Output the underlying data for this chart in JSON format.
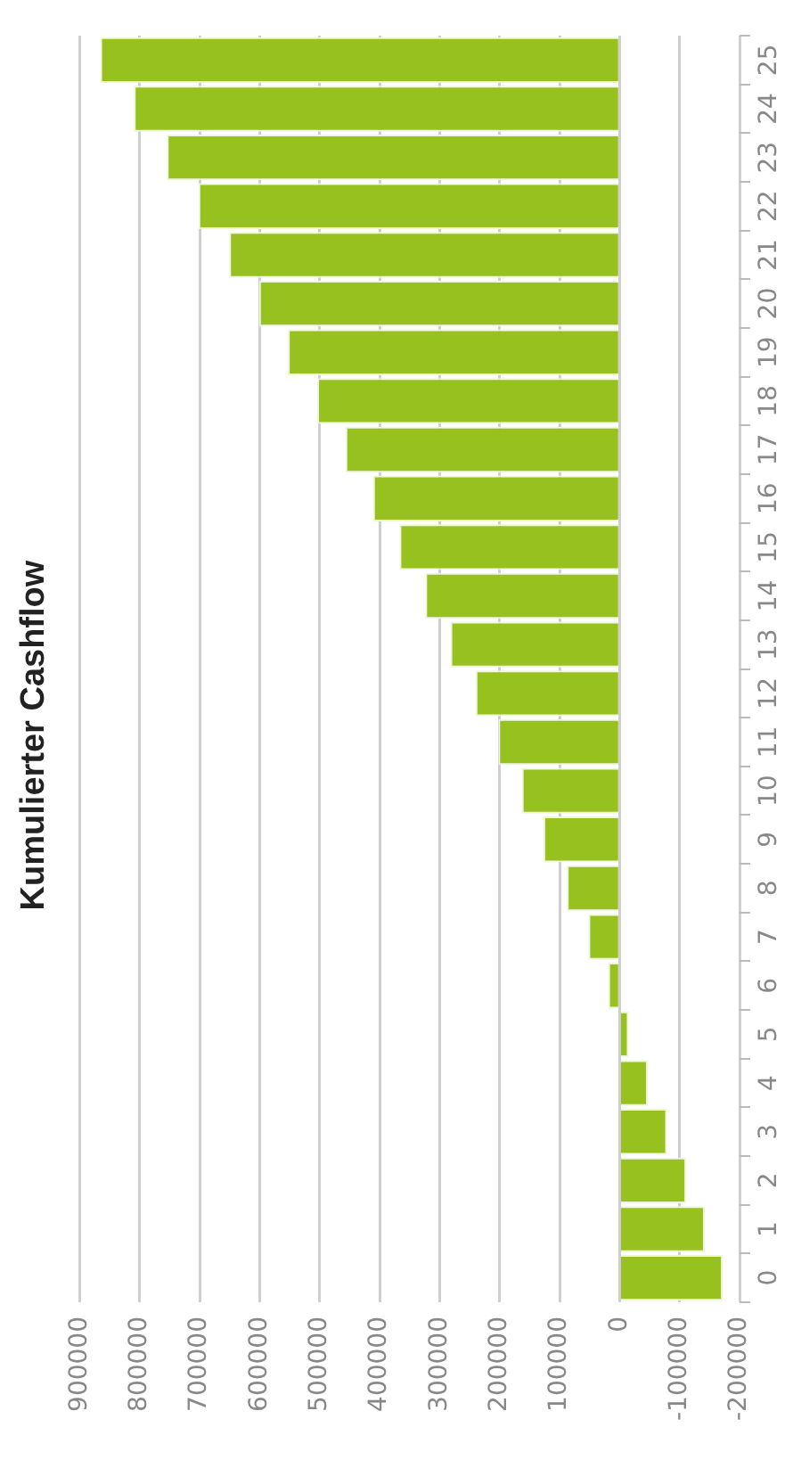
{
  "chart_data": {
    "type": "bar",
    "title": "Kumulierter Cashflow",
    "orientation": "horizontal",
    "categories": [
      "25",
      "24",
      "23",
      "22",
      "21",
      "20",
      "19",
      "18",
      "17",
      "16",
      "15",
      "14",
      "13",
      "12",
      "11",
      "10",
      "9",
      "8",
      "7",
      "6",
      "5",
      "4",
      "3",
      "2",
      "1",
      "0"
    ],
    "values": [
      866000,
      810000,
      755000,
      702000,
      651000,
      601000,
      553000,
      504000,
      457000,
      411000,
      367000,
      324000,
      282000,
      240000,
      202000,
      163000,
      127000,
      88000,
      52000,
      19000,
      -15000,
      -47000,
      -79000,
      -111000,
      -142000,
      -172000
    ],
    "color": "#96c11f",
    "xlim": [
      900000,
      -200000
    ],
    "xticks": [
      900000,
      800000,
      700000,
      600000,
      500000,
      400000,
      300000,
      200000,
      100000,
      0,
      -100000,
      -200000
    ],
    "grid": "x",
    "legend": false
  }
}
